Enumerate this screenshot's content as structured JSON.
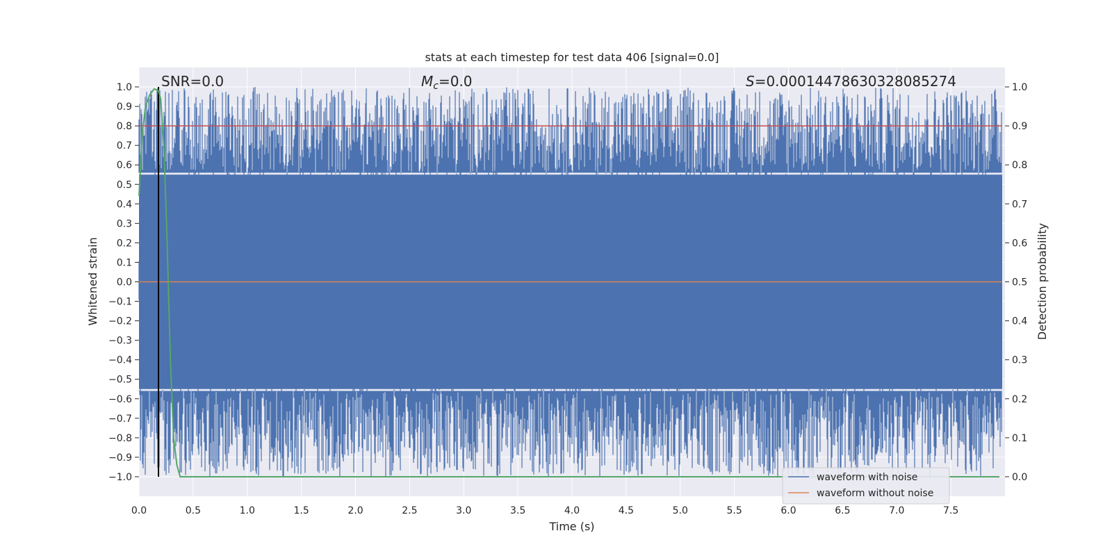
{
  "chart_data": {
    "type": "line",
    "title": "stats at each timestep for test data 406 [signal=0.0]",
    "xlabel": "Time (s)",
    "ylabel": "Whitened strain",
    "y2label": "Detection probability",
    "xlim": [
      0.0,
      8.0
    ],
    "ylim": [
      -1.1,
      1.1
    ],
    "y2lim": [
      -0.05,
      1.05
    ],
    "x_ticks": [
      "0.0",
      "0.5",
      "1.0",
      "1.5",
      "2.0",
      "2.5",
      "3.0",
      "3.5",
      "4.0",
      "4.5",
      "5.0",
      "5.5",
      "6.0",
      "6.5",
      "7.0",
      "7.5"
    ],
    "y_ticks": [
      "1.0",
      "0.9",
      "0.8",
      "0.7",
      "0.6",
      "0.5",
      "0.4",
      "0.3",
      "0.2",
      "0.1",
      "0.0",
      "−0.1",
      "−0.2",
      "−0.3",
      "−0.4",
      "−0.5",
      "−0.6",
      "−0.7",
      "−0.8",
      "−0.9",
      "−1.0"
    ],
    "y2_ticks": [
      "1.0",
      "0.9",
      "0.8",
      "0.7",
      "0.6",
      "0.5",
      "0.4",
      "0.3",
      "0.2",
      "0.1",
      "0.0"
    ],
    "grid": true,
    "legend_position": "bottom-right",
    "annotations": {
      "snr": "SNR=0.0",
      "mc_symbol": "M",
      "mc_sub": "c",
      "mc_value": "=0.0",
      "s_symbol": "S",
      "s_value": "=0.00014478630328085274"
    },
    "series": [
      {
        "name": "waveform with noise",
        "color": "#4c72b0",
        "axis": "left",
        "description_range": [
          -1.0,
          1.0
        ]
      },
      {
        "name": "waveform without noise",
        "color": "#dd8452",
        "axis": "left",
        "values_constant": 0.0
      },
      {
        "axis": "right",
        "color": "#55a868",
        "x": [
          0.0,
          0.03,
          0.06,
          0.1,
          0.14,
          0.18,
          0.2,
          0.23,
          0.26,
          0.29,
          0.32,
          0.35,
          0.38,
          0.5,
          8.0
        ],
        "values": [
          0.72,
          0.88,
          0.95,
          0.98,
          0.995,
          0.99,
          0.97,
          0.85,
          0.6,
          0.3,
          0.1,
          0.03,
          0.0,
          0.0,
          0.0
        ]
      }
    ],
    "threshold_line": {
      "axis": "right",
      "value": 0.9,
      "color": "#c44e52"
    },
    "marker_line": {
      "x": 0.18,
      "color": "#000000"
    },
    "colors": {
      "background": "#eaeaf2",
      "grid": "#ffffff",
      "noise": "#4c72b0"
    }
  }
}
